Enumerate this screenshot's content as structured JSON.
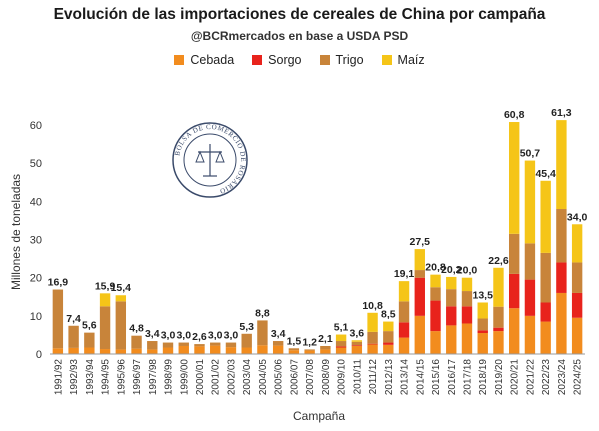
{
  "chart_data": {
    "type": "bar",
    "stacked": true,
    "title": "Evolución de las importaciones de cereales de China por campaña",
    "subtitle": "@BCRmercados en base a USDA PSD",
    "xlabel": "Campaña",
    "ylabel": "Millones de toneladas",
    "ylim": [
      0,
      65
    ],
    "yticks": [
      0,
      10,
      20,
      30,
      40,
      50,
      60
    ],
    "grid": false,
    "legend_position": "top",
    "series_colors": {
      "Cebada": "#f28c1e",
      "Sorgo": "#e8231c",
      "Trigo": "#c8843a",
      "Maíz": "#f5c518"
    },
    "categories": [
      "1991/92",
      "1992/93",
      "1993/94",
      "1994/95",
      "1995/96",
      "1996/97",
      "1997/98",
      "1998/99",
      "1999/00",
      "2000/01",
      "2001/02",
      "2002/03",
      "2003/04",
      "2004/05",
      "2005/06",
      "2006/07",
      "2007/08",
      "2008/09",
      "2009/10",
      "2010/11",
      "2011/12",
      "2012/13",
      "2013/14",
      "2014/15",
      "2015/16",
      "2016/17",
      "2017/18",
      "2018/19",
      "2019/20",
      "2020/21",
      "2021/22",
      "2022/23",
      "2023/24",
      "2024/25"
    ],
    "series": [
      {
        "name": "Cebada",
        "values": [
          1.5,
          1.6,
          1.7,
          1.3,
          1.2,
          1.4,
          1.2,
          1.7,
          2.1,
          2.0,
          2.2,
          1.8,
          1.7,
          2.3,
          2.2,
          1.0,
          0.9,
          1.2,
          1.7,
          2.1,
          2.5,
          2.4,
          4.3,
          10.0,
          6.0,
          7.5,
          8.0,
          5.5,
          6.0,
          12.0,
          10.0,
          8.5,
          16.0,
          9.5
        ]
      },
      {
        "name": "Sorgo",
        "values": [
          0,
          0,
          0,
          0,
          0,
          0,
          0,
          0,
          0,
          0,
          0,
          0,
          0,
          0,
          0,
          0,
          0,
          0,
          0.3,
          0.2,
          0.2,
          0.6,
          4.0,
          10.0,
          8.0,
          5.0,
          4.5,
          0.7,
          0.9,
          9.0,
          9.5,
          5.0,
          8.0,
          6.5
        ]
      },
      {
        "name": "Trigo",
        "values": [
          15.4,
          5.8,
          3.9,
          11.2,
          12.6,
          3.4,
          2.2,
          1.3,
          0.9,
          0.6,
          0.8,
          1.2,
          3.6,
          6.5,
          1.2,
          0.5,
          0.3,
          0.9,
          1.4,
          0.9,
          3.1,
          3.0,
          5.5,
          2.0,
          3.5,
          4.5,
          4.0,
          3.1,
          5.5,
          10.5,
          9.5,
          13.0,
          14.0,
          8.0
        ]
      },
      {
        "name": "Maíz",
        "values": [
          0,
          0,
          0,
          3.4,
          1.6,
          0,
          0,
          0,
          0,
          0,
          0,
          0,
          0,
          0,
          0,
          0,
          0,
          0,
          1.7,
          0.4,
          5.0,
          2.5,
          5.3,
          5.5,
          3.3,
          3.2,
          3.5,
          4.2,
          10.2,
          29.3,
          21.7,
          18.9,
          23.3,
          10.0
        ]
      }
    ],
    "totals": [
      16.9,
      7.4,
      5.6,
      15.9,
      15.4,
      4.8,
      3.4,
      3.0,
      3.0,
      2.6,
      3.0,
      3.0,
      5.3,
      8.8,
      3.4,
      1.5,
      1.2,
      2.1,
      5.1,
      3.6,
      10.8,
      8.5,
      19.1,
      27.5,
      20.8,
      20.2,
      20.0,
      13.5,
      22.6,
      60.8,
      50.7,
      45.4,
      61.3,
      34.0
    ],
    "data_labels": [
      "16,9",
      "7,4",
      "5,6",
      "15,9",
      "15,4",
      "4,8",
      "3,4",
      "3,0",
      "3,0",
      "2,6",
      "3,0",
      "3,0",
      "5,3",
      "8,8",
      "3,4",
      "1,5",
      "1,2",
      "2,1",
      "5,1",
      "3,6",
      "10,8",
      "8,5",
      "19,1",
      "27,5",
      "20,8",
      "20,2",
      "20,0",
      "13,5",
      "22,6",
      "60,8",
      "50,7",
      "45,4",
      "61,3",
      "34,0"
    ]
  },
  "watermark": {
    "text": "BOLSA DE COMERCIO DE ROSARIO"
  }
}
